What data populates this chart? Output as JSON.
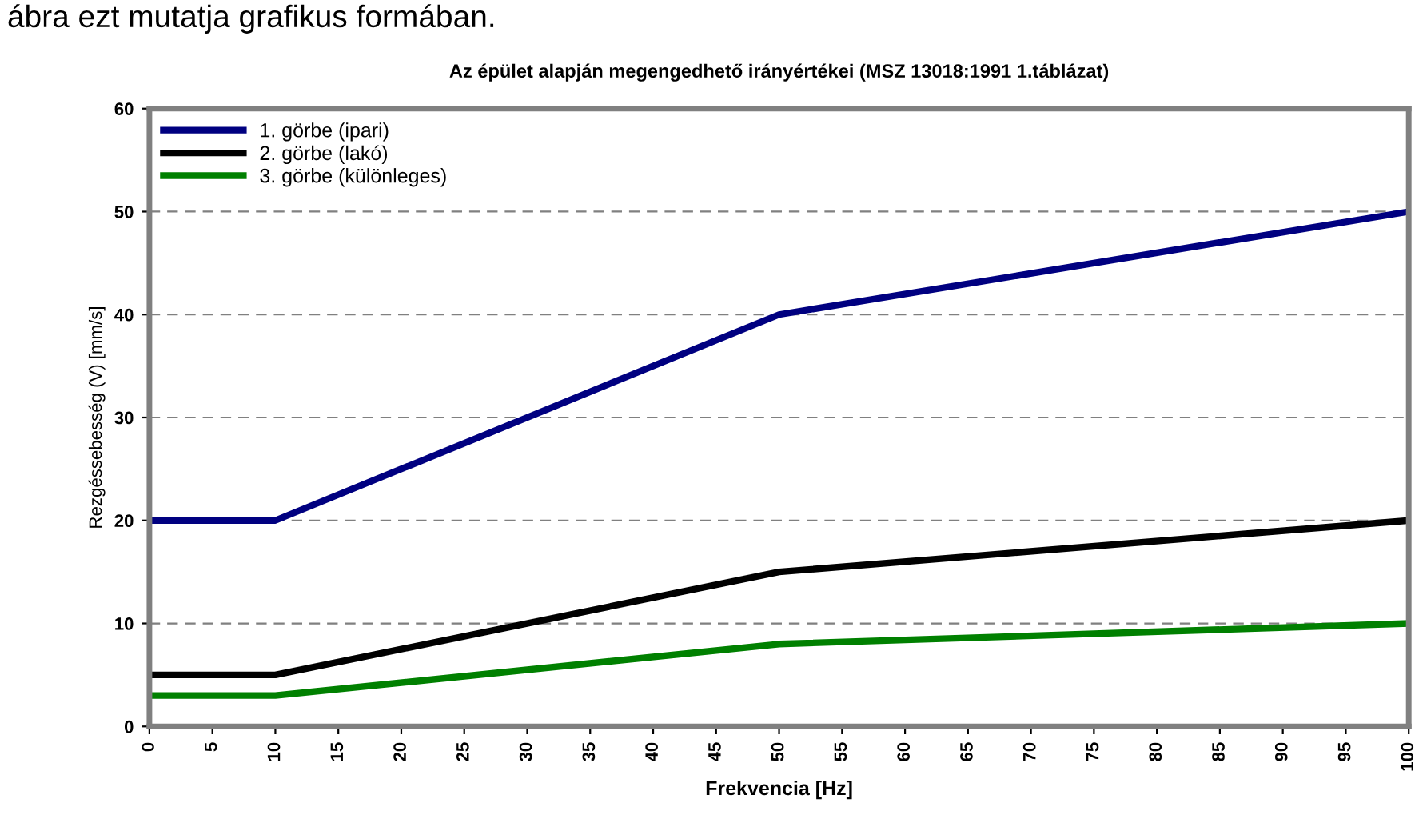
{
  "chart_data": {
    "type": "line",
    "title": "Az épület alapján megengedhető irányértékei (MSZ 13018:1991 1.táblázat)",
    "xlabel": "Frekvencia [Hz]",
    "ylabel": "Rezgéssebesség (V) [mm/s]",
    "annotations": [
      "ábra ezt mutatja grafikus formában."
    ],
    "x": [
      0,
      10,
      50,
      100
    ],
    "series": [
      {
        "name": "1. görbe (ipari)",
        "color": "#000080",
        "values": [
          20,
          20,
          40,
          50
        ]
      },
      {
        "name": "2. görbe (lakó)",
        "color": "#000000",
        "values": [
          5,
          5,
          15,
          20
        ]
      },
      {
        "name": "3. görbe (különleges)",
        "color": "#008000",
        "values": [
          3,
          3,
          8,
          10
        ]
      }
    ],
    "xlim": [
      0,
      100
    ],
    "xticks": [
      0,
      5,
      10,
      15,
      20,
      25,
      30,
      35,
      40,
      45,
      50,
      55,
      60,
      65,
      70,
      75,
      80,
      85,
      90,
      95,
      100
    ],
    "ylim": [
      0,
      60
    ],
    "yticks": [
      0,
      10,
      20,
      30,
      40,
      50,
      60
    ],
    "grid": "y",
    "legend": "top left",
    "line_style": "solid",
    "marker": "none"
  }
}
